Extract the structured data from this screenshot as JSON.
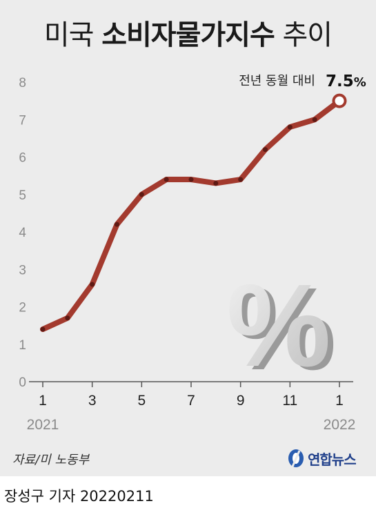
{
  "title": {
    "part1": "미국 ",
    "part2": "소비자물가지수",
    "part3": " 추이"
  },
  "annotation": {
    "label": "전년 동월 대비",
    "value": "7.5",
    "unit": "%"
  },
  "source": "자료/미 노동부",
  "logo": {
    "text": "연합뉴스"
  },
  "byline": "장성구 기자  20220211",
  "chart_data": {
    "type": "line",
    "title": "미국 소비자물가지수 추이",
    "x": [
      "2021-01",
      "2021-02",
      "2021-03",
      "2021-04",
      "2021-05",
      "2021-06",
      "2021-07",
      "2021-08",
      "2021-09",
      "2021-10",
      "2021-11",
      "2021-12",
      "2022-01"
    ],
    "x_tick_labels": [
      "1",
      "3",
      "5",
      "7",
      "9",
      "11",
      "1"
    ],
    "year_labels": [
      "2021",
      "2022"
    ],
    "series": [
      {
        "values": [
          1.4,
          1.7,
          2.6,
          4.2,
          5.0,
          5.4,
          5.4,
          5.3,
          5.4,
          6.2,
          6.8,
          7.0,
          7.5
        ]
      }
    ],
    "ylim": [
      0,
      8
    ],
    "y_ticks": [
      "0",
      "1",
      "2",
      "3",
      "4",
      "5",
      "6",
      "7",
      "8"
    ],
    "grid": false,
    "colors": {
      "line": "#a33a2e",
      "marker_fill": "#ffffff",
      "axis": "#555555",
      "tick_text": "#8a8a8a"
    }
  }
}
